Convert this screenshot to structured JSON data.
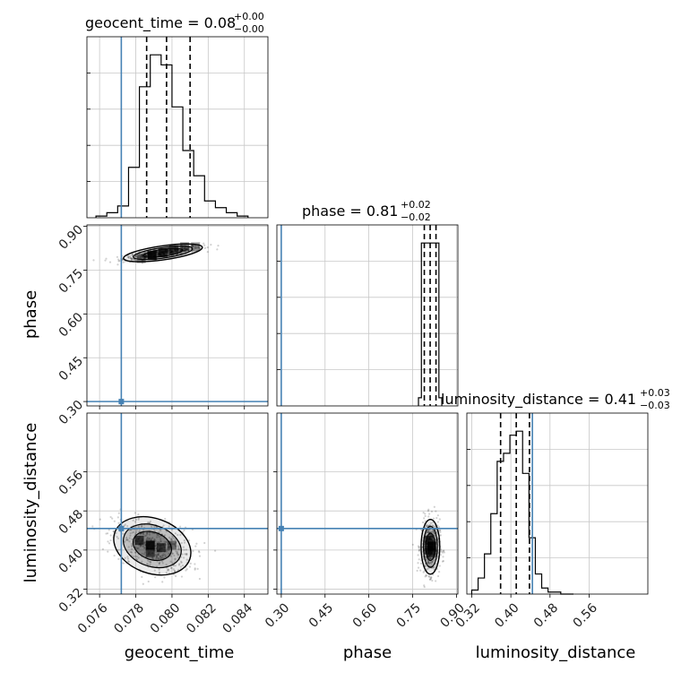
{
  "chart_data": {
    "type": "corner",
    "parameters": [
      "geocent_time",
      "phase",
      "luminosity_distance"
    ],
    "truths": {
      "geocent_time": 0.0772,
      "phase": 0.3,
      "luminosity_distance": 0.444
    },
    "truth_color": "#4682b4",
    "axes": {
      "geocent_time": {
        "range": [
          0.0753,
          0.0853
        ],
        "ticks": [
          0.076,
          0.078,
          0.08,
          0.082,
          0.084
        ],
        "tick_labels": [
          "0.076",
          "0.078",
          "0.080",
          "0.082",
          "0.084"
        ]
      },
      "phase": {
        "range": [
          0.285,
          0.905
        ],
        "ticks": [
          0.3,
          0.45,
          0.6,
          0.75,
          0.9
        ],
        "tick_labels": [
          "0.30",
          "0.45",
          "0.60",
          "0.75",
          "0.90"
        ]
      },
      "luminosity_distance": {
        "range": [
          0.31,
          0.68
        ],
        "ticks": [
          0.32,
          0.4,
          0.48,
          0.56
        ],
        "tick_labels": [
          "0.32",
          "0.40",
          "0.48",
          "0.56"
        ]
      }
    },
    "diagonal": [
      {
        "parameter": "geocent_time",
        "title_main": "geocent_time = 0.08",
        "title_sup": "+0.00",
        "title_sub": "−0.00",
        "quantiles": [
          0.0786,
          0.0797,
          0.081
        ],
        "bin_edges": [
          0.0758,
          0.0764,
          0.077,
          0.0776,
          0.0782,
          0.0788,
          0.0794,
          0.08,
          0.0806,
          0.0812,
          0.0818,
          0.0824,
          0.083,
          0.0836,
          0.0842
        ],
        "counts": [
          1,
          3,
          7,
          30,
          78,
          97,
          91,
          66,
          40,
          25,
          10,
          6,
          3,
          1
        ]
      },
      {
        "parameter": "phase",
        "title_main": "phase = 0.81",
        "title_sup": "+0.02",
        "title_sub": "−0.02",
        "quantiles": [
          0.79,
          0.81,
          0.83
        ],
        "bin_edges": [
          0.77,
          0.78,
          0.79,
          0.8,
          0.81,
          0.82,
          0.83,
          0.84,
          0.85
        ],
        "counts": [
          5,
          100,
          100,
          100,
          100,
          100,
          100,
          5
        ]
      },
      {
        "parameter": "luminosity_distance",
        "title_main": "luminosity_distance = 0.41",
        "title_sup": "+0.03",
        "title_sub": "−0.03",
        "quantiles": [
          0.379,
          0.411,
          0.438
        ],
        "bin_edges": [
          0.32,
          0.333,
          0.346,
          0.359,
          0.372,
          0.385,
          0.398,
          0.411,
          0.424,
          0.437,
          0.45,
          0.463,
          0.476,
          0.489,
          0.502,
          0.515,
          0.528
        ],
        "counts": [
          2,
          8,
          20,
          40,
          66,
          70,
          79,
          81,
          60,
          28,
          10,
          3,
          1,
          1,
          0,
          0
        ]
      }
    ],
    "pairs": [
      {
        "x": "geocent_time",
        "y": "phase",
        "mode_cells": [
          {
            "x": 0.0789,
            "y": 0.8,
            "v": 1.0
          },
          {
            "x": 0.0795,
            "y": 0.81,
            "v": 0.6
          },
          {
            "x": 0.0801,
            "y": 0.82,
            "v": 0.5
          },
          {
            "x": 0.0783,
            "y": 0.79,
            "v": 0.35
          },
          {
            "x": 0.0807,
            "y": 0.83,
            "v": 0.3
          },
          {
            "x": 0.0813,
            "y": 0.83,
            "v": 0.2
          }
        ]
      },
      {
        "x": "geocent_time",
        "y": "luminosity_distance",
        "mode_cells": [
          {
            "x": 0.0788,
            "y": 0.41,
            "v": 1.0
          },
          {
            "x": 0.0782,
            "y": 0.42,
            "v": 0.6
          },
          {
            "x": 0.0794,
            "y": 0.405,
            "v": 0.55
          },
          {
            "x": 0.0788,
            "y": 0.395,
            "v": 0.5
          },
          {
            "x": 0.08,
            "y": 0.41,
            "v": 0.3
          }
        ]
      },
      {
        "x": "phase",
        "y": "luminosity_distance",
        "mode_cells": [
          {
            "x": 0.815,
            "y": 0.408,
            "v": 1.0
          },
          {
            "x": 0.805,
            "y": 0.42,
            "v": 0.6
          },
          {
            "x": 0.815,
            "y": 0.395,
            "v": 0.55
          },
          {
            "x": 0.805,
            "y": 0.4,
            "v": 0.45
          }
        ]
      }
    ],
    "grid": true
  }
}
